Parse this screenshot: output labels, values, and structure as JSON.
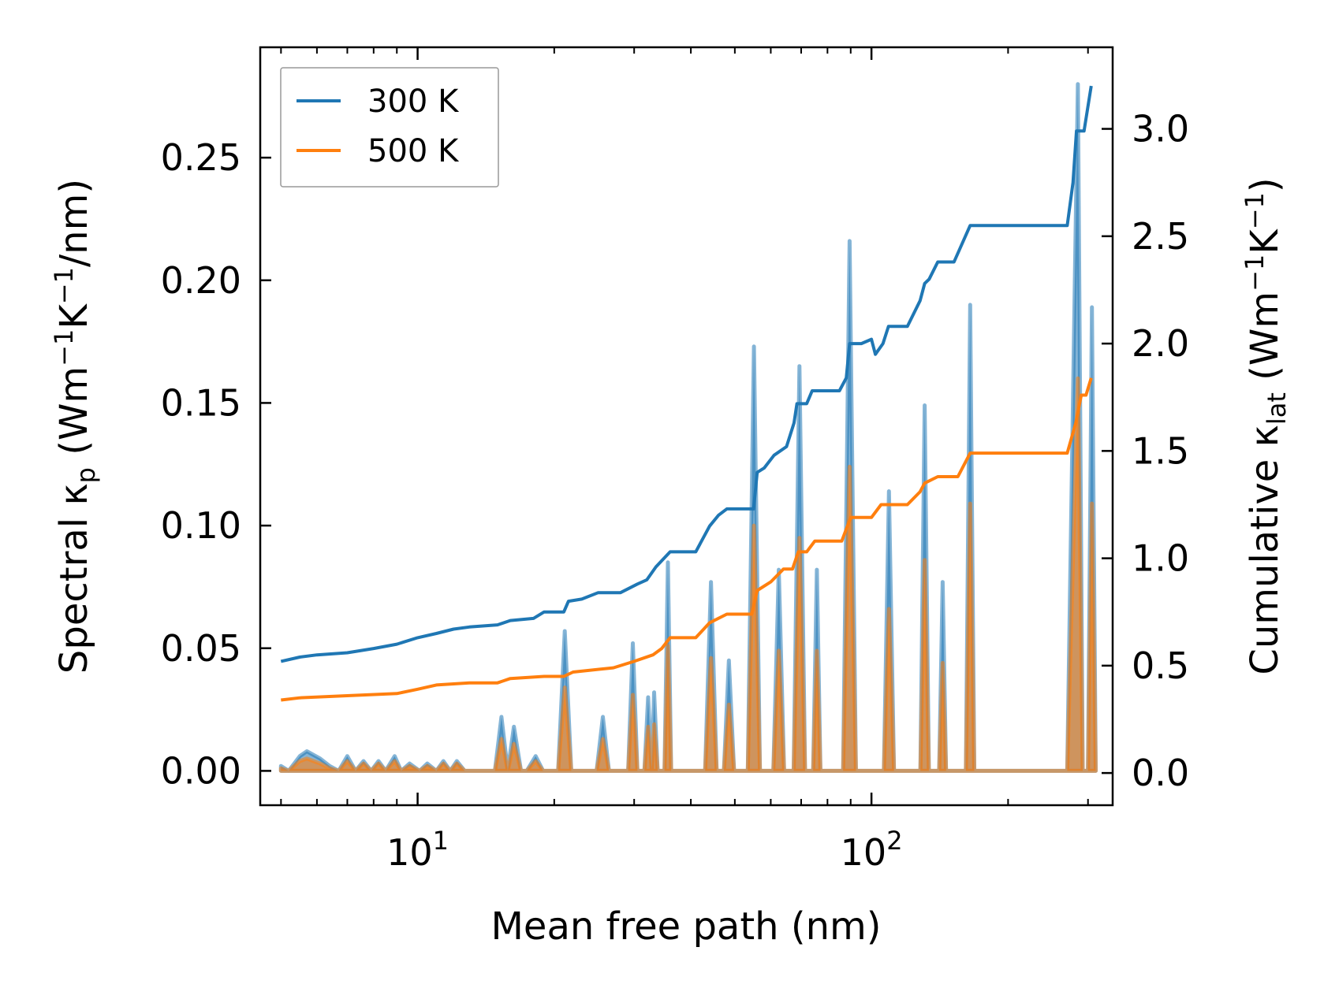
{
  "chart_data": {
    "type": "line",
    "xlabel": "Mean free path (nm)",
    "ylabel_left": {
      "main": "Spectral κ",
      "sub": "p",
      "unit_open": " (Wm",
      "exp1": "−1",
      "mid": "K",
      "exp2": "−1",
      "unit_close": "/nm)"
    },
    "ylabel_right": {
      "main": "Cumulative κ",
      "sub": "lat",
      "unit_open": " (Wm",
      "exp1": "−1",
      "mid": "K",
      "exp2": "−1",
      "unit_close": ")"
    },
    "xscale": "log",
    "xlim": [
      4.5,
      340
    ],
    "ylim_left": [
      -0.014,
      0.295
    ],
    "ylim_right": [
      -0.15,
      3.38
    ],
    "x_ticks": [
      {
        "value": 10,
        "base": "10",
        "exp": "1"
      },
      {
        "value": 100,
        "base": "10",
        "exp": "2"
      }
    ],
    "left_ticks": [
      "0.00",
      "0.05",
      "0.10",
      "0.15",
      "0.20",
      "0.25"
    ],
    "right_ticks": [
      "0.0",
      "0.5",
      "1.0",
      "1.5",
      "2.0",
      "2.5",
      "3.0"
    ],
    "legend": {
      "position": "top-left",
      "entries": [
        {
          "label": "300 K",
          "color": "#1f77b4"
        },
        {
          "label": "500 K",
          "color": "#ff7f0e"
        }
      ]
    },
    "series": [
      {
        "name": "300 K",
        "color": "#1f77b4",
        "spectral": [
          [
            5.0,
            0.002
          ],
          [
            5.2,
            0.0
          ],
          [
            5.5,
            0.006
          ],
          [
            5.7,
            0.008
          ],
          [
            6.1,
            0.005
          ],
          [
            6.4,
            0.002
          ],
          [
            6.7,
            0.0
          ],
          [
            7.0,
            0.006
          ],
          [
            7.3,
            0.0
          ],
          [
            7.6,
            0.004
          ],
          [
            7.9,
            0.0
          ],
          [
            8.2,
            0.004
          ],
          [
            8.5,
            0.0
          ],
          [
            8.9,
            0.006
          ],
          [
            9.2,
            0.0
          ],
          [
            9.6,
            0.003
          ],
          [
            10.1,
            0.0
          ],
          [
            10.5,
            0.003
          ],
          [
            11.0,
            0.0
          ],
          [
            11.4,
            0.004
          ],
          [
            11.8,
            0.0
          ],
          [
            12.2,
            0.004
          ],
          [
            12.7,
            0.0
          ],
          [
            13.2,
            0.0
          ],
          [
            14.8,
            0.0
          ],
          [
            15.3,
            0.022
          ],
          [
            15.8,
            0.0
          ],
          [
            16.3,
            0.018
          ],
          [
            16.9,
            0.0
          ],
          [
            17.4,
            0.0
          ],
          [
            18.2,
            0.006
          ],
          [
            18.9,
            0.0
          ],
          [
            20.4,
            0.0
          ],
          [
            21.1,
            0.057
          ],
          [
            21.8,
            0.0
          ],
          [
            24.8,
            0.0
          ],
          [
            25.6,
            0.022
          ],
          [
            26.4,
            0.0
          ],
          [
            29.1,
            0.0
          ],
          [
            29.8,
            0.052
          ],
          [
            30.5,
            0.0
          ],
          [
            31.6,
            0.0
          ],
          [
            32.2,
            0.03
          ],
          [
            32.8,
            0.0
          ],
          [
            33.2,
            0.032
          ],
          [
            33.8,
            0.0
          ],
          [
            35.0,
            0.0
          ],
          [
            35.6,
            0.085
          ],
          [
            36.2,
            0.0
          ],
          [
            43.0,
            0.0
          ],
          [
            44.3,
            0.077
          ],
          [
            45.6,
            0.0
          ],
          [
            47.3,
            0.0
          ],
          [
            48.5,
            0.045
          ],
          [
            49.8,
            0.0
          ],
          [
            51.5,
            0.0
          ],
          [
            53.4,
            0.0
          ],
          [
            55.1,
            0.173
          ],
          [
            56.8,
            0.0
          ],
          [
            60.8,
            0.0
          ],
          [
            62.5,
            0.082
          ],
          [
            64.2,
            0.0
          ],
          [
            67.4,
            0.0
          ],
          [
            69.4,
            0.165
          ],
          [
            71.4,
            0.0
          ],
          [
            74.4,
            0.0
          ],
          [
            75.8,
            0.082
          ],
          [
            77.2,
            0.0
          ],
          [
            86.6,
            0.0
          ],
          [
            89.5,
            0.216
          ],
          [
            92.4,
            0.0
          ],
          [
            106.5,
            0.0
          ],
          [
            109.3,
            0.114
          ],
          [
            112.1,
            0.0
          ],
          [
            128.2,
            0.0
          ],
          [
            131.0,
            0.149
          ],
          [
            133.8,
            0.0
          ],
          [
            141.0,
            0.0
          ],
          [
            143.5,
            0.077
          ],
          [
            146.0,
            0.0
          ],
          [
            161.5,
            0.0
          ],
          [
            165.0,
            0.19
          ],
          [
            168.5,
            0.0
          ],
          [
            270.0,
            0.0
          ],
          [
            285.0,
            0.28
          ],
          [
            292.0,
            0.0
          ],
          [
            300.0,
            0.0
          ],
          [
            306.0,
            0.189
          ],
          [
            312.0,
            0.0
          ]
        ],
        "cumulative": [
          [
            5.0,
            0.52
          ],
          [
            5.5,
            0.54
          ],
          [
            6.0,
            0.55
          ],
          [
            7.0,
            0.56
          ],
          [
            8.0,
            0.58
          ],
          [
            9.0,
            0.6
          ],
          [
            10.0,
            0.63
          ],
          [
            11.0,
            0.65
          ],
          [
            12.0,
            0.67
          ],
          [
            13.0,
            0.68
          ],
          [
            15.0,
            0.69
          ],
          [
            16.0,
            0.71
          ],
          [
            18.0,
            0.72
          ],
          [
            19.0,
            0.75
          ],
          [
            21.0,
            0.75
          ],
          [
            21.5,
            0.8
          ],
          [
            23.0,
            0.81
          ],
          [
            25.0,
            0.84
          ],
          [
            28.0,
            0.84
          ],
          [
            30.5,
            0.88
          ],
          [
            32.0,
            0.9
          ],
          [
            33.5,
            0.96
          ],
          [
            36.0,
            1.03
          ],
          [
            41.0,
            1.03
          ],
          [
            44.0,
            1.15
          ],
          [
            46.0,
            1.2
          ],
          [
            48.0,
            1.23
          ],
          [
            50.5,
            1.23
          ],
          [
            55.0,
            1.23
          ],
          [
            56.0,
            1.4
          ],
          [
            58.0,
            1.42
          ],
          [
            61.0,
            1.48
          ],
          [
            65.0,
            1.52
          ],
          [
            67.5,
            1.63
          ],
          [
            68.5,
            1.72
          ],
          [
            72.0,
            1.72
          ],
          [
            74.0,
            1.78
          ],
          [
            85.0,
            1.78
          ],
          [
            88.0,
            1.84
          ],
          [
            89.5,
            2.0
          ],
          [
            95.0,
            2.0
          ],
          [
            100.0,
            2.02
          ],
          [
            102.0,
            1.95
          ],
          [
            106.0,
            2.0
          ],
          [
            109.0,
            2.08
          ],
          [
            120.0,
            2.08
          ],
          [
            128.0,
            2.2
          ],
          [
            131.0,
            2.28
          ],
          [
            134.0,
            2.3
          ],
          [
            140.0,
            2.38
          ],
          [
            152.0,
            2.38
          ],
          [
            165.0,
            2.55
          ],
          [
            270.0,
            2.55
          ],
          [
            278.0,
            2.75
          ],
          [
            283.0,
            2.99
          ],
          [
            294.0,
            2.99
          ],
          [
            305.0,
            3.2
          ]
        ]
      },
      {
        "name": "500 K",
        "color": "#ff7f0e",
        "spectral": [
          [
            5.0,
            0.001
          ],
          [
            5.2,
            0.0
          ],
          [
            5.5,
            0.004
          ],
          [
            5.7,
            0.005
          ],
          [
            6.1,
            0.003
          ],
          [
            6.4,
            0.001
          ],
          [
            6.7,
            0.0
          ],
          [
            7.0,
            0.004
          ],
          [
            7.3,
            0.0
          ],
          [
            7.6,
            0.003
          ],
          [
            7.9,
            0.0
          ],
          [
            8.2,
            0.003
          ],
          [
            8.5,
            0.0
          ],
          [
            8.9,
            0.004
          ],
          [
            9.2,
            0.0
          ],
          [
            9.6,
            0.002
          ],
          [
            10.1,
            0.0
          ],
          [
            10.5,
            0.002
          ],
          [
            11.0,
            0.0
          ],
          [
            11.4,
            0.003
          ],
          [
            11.8,
            0.0
          ],
          [
            12.2,
            0.003
          ],
          [
            12.7,
            0.0
          ],
          [
            13.2,
            0.0
          ],
          [
            14.8,
            0.0
          ],
          [
            15.3,
            0.013
          ],
          [
            15.8,
            0.0
          ],
          [
            16.3,
            0.011
          ],
          [
            16.9,
            0.0
          ],
          [
            17.4,
            0.0
          ],
          [
            18.2,
            0.004
          ],
          [
            18.9,
            0.0
          ],
          [
            20.4,
            0.0
          ],
          [
            21.1,
            0.034
          ],
          [
            21.8,
            0.0
          ],
          [
            24.8,
            0.0
          ],
          [
            25.6,
            0.013
          ],
          [
            26.4,
            0.0
          ],
          [
            29.1,
            0.0
          ],
          [
            29.8,
            0.031
          ],
          [
            30.5,
            0.0
          ],
          [
            31.6,
            0.0
          ],
          [
            32.2,
            0.018
          ],
          [
            32.8,
            0.0
          ],
          [
            33.2,
            0.019
          ],
          [
            33.8,
            0.0
          ],
          [
            35.0,
            0.0
          ],
          [
            35.6,
            0.051
          ],
          [
            36.2,
            0.0
          ],
          [
            43.0,
            0.0
          ],
          [
            44.3,
            0.046
          ],
          [
            45.6,
            0.0
          ],
          [
            47.3,
            0.0
          ],
          [
            48.5,
            0.027
          ],
          [
            49.8,
            0.0
          ],
          [
            51.5,
            0.0
          ],
          [
            53.4,
            0.0
          ],
          [
            55.1,
            0.1
          ],
          [
            56.8,
            0.0
          ],
          [
            60.8,
            0.0
          ],
          [
            62.5,
            0.049
          ],
          [
            64.2,
            0.0
          ],
          [
            67.4,
            0.0
          ],
          [
            69.4,
            0.095
          ],
          [
            71.4,
            0.0
          ],
          [
            74.4,
            0.0
          ],
          [
            75.8,
            0.049
          ],
          [
            77.2,
            0.0
          ],
          [
            86.6,
            0.0
          ],
          [
            89.5,
            0.124
          ],
          [
            92.4,
            0.0
          ],
          [
            106.5,
            0.0
          ],
          [
            109.3,
            0.066
          ],
          [
            112.1,
            0.0
          ],
          [
            128.2,
            0.0
          ],
          [
            131.0,
            0.086
          ],
          [
            133.8,
            0.0
          ],
          [
            141.0,
            0.0
          ],
          [
            143.5,
            0.044
          ],
          [
            146.0,
            0.0
          ],
          [
            161.5,
            0.0
          ],
          [
            165.0,
            0.109
          ],
          [
            168.5,
            0.0
          ],
          [
            270.0,
            0.0
          ],
          [
            285.0,
            0.16
          ],
          [
            292.0,
            0.0
          ],
          [
            300.0,
            0.0
          ],
          [
            306.0,
            0.109
          ],
          [
            312.0,
            0.0
          ]
        ],
        "cumulative": [
          [
            5.0,
            0.34
          ],
          [
            5.5,
            0.35
          ],
          [
            7.0,
            0.36
          ],
          [
            9.0,
            0.37
          ],
          [
            10.0,
            0.39
          ],
          [
            11.0,
            0.41
          ],
          [
            13.0,
            0.42
          ],
          [
            15.0,
            0.42
          ],
          [
            16.0,
            0.44
          ],
          [
            19.0,
            0.45
          ],
          [
            21.0,
            0.45
          ],
          [
            22.0,
            0.47
          ],
          [
            27.0,
            0.49
          ],
          [
            30.0,
            0.52
          ],
          [
            33.0,
            0.55
          ],
          [
            34.5,
            0.58
          ],
          [
            36.0,
            0.63
          ],
          [
            41.0,
            0.63
          ],
          [
            44.0,
            0.7
          ],
          [
            48.0,
            0.74
          ],
          [
            54.5,
            0.74
          ],
          [
            56.0,
            0.85
          ],
          [
            60.0,
            0.89
          ],
          [
            64.0,
            0.95
          ],
          [
            67.0,
            0.95
          ],
          [
            69.0,
            1.03
          ],
          [
            72.0,
            1.03
          ],
          [
            75.0,
            1.08
          ],
          [
            86.0,
            1.08
          ],
          [
            90.0,
            1.19
          ],
          [
            100.0,
            1.19
          ],
          [
            105.0,
            1.25
          ],
          [
            120.0,
            1.25
          ],
          [
            128.0,
            1.31
          ],
          [
            131.0,
            1.35
          ],
          [
            140.0,
            1.38
          ],
          [
            155.0,
            1.38
          ],
          [
            165.0,
            1.49
          ],
          [
            270.0,
            1.49
          ],
          [
            282.0,
            1.63
          ],
          [
            290.0,
            1.76
          ],
          [
            297.0,
            1.76
          ],
          [
            305.0,
            1.84
          ]
        ]
      }
    ]
  }
}
